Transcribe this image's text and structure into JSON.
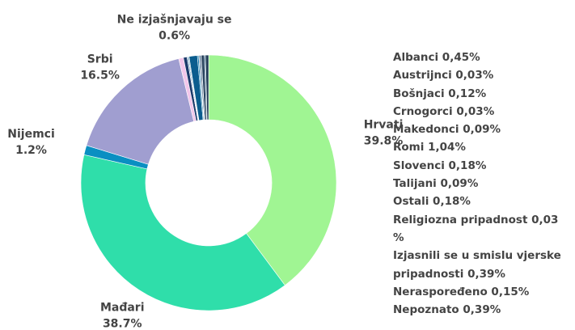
{
  "chart_data": {
    "type": "pie",
    "donut": true,
    "categories": [
      "Hrvati",
      "Mađari",
      "Nijemci",
      "Srbi",
      "Ne izjašnjavaju se"
    ],
    "values": [
      39.8,
      38.7,
      1.2,
      16.5,
      0.6
    ],
    "value_labels": [
      "39.8%",
      "38.7%",
      "1.2%",
      "16.5%",
      "0.6%"
    ],
    "colors": [
      "#a0f593",
      "#2fdeaa",
      "#0a8fc2",
      "#a09ed0",
      "#f2c6ea"
    ],
    "other": {
      "categories": [
        "Albanci",
        "Austrijnci",
        "Bošnjaci",
        "Crnogorci",
        "Makedonci",
        "Romi",
        "Slovenci",
        "Talijani",
        "Ostali",
        "Religiozna pripadnost",
        "Izjasnili se u smislu vjerske pripadnosti",
        "Neraspoređeno",
        "Nepoznato"
      ],
      "values": [
        0.45,
        0.03,
        0.12,
        0.03,
        0.09,
        1.04,
        0.18,
        0.09,
        0.18,
        0.03,
        0.39,
        0.15,
        0.39
      ],
      "value_labels": [
        "0,45%",
        "0,03%",
        "0,12%",
        "0,03%",
        "0,09%",
        "1,04%",
        "0,18%",
        "0,09%",
        "0,18%",
        "0,03 %",
        "0,39%",
        "0,15%",
        "0,39%"
      ],
      "colors": [
        "#1b3a6b",
        "#234e86",
        "#0e6a9c",
        "#2a5f8f",
        "#14527a",
        "#0b5d8e",
        "#1a7fb0",
        "#2c4f7c",
        "#375a7f",
        "#1f4d73",
        "#29445f",
        "#3b6b8c",
        "#203a56"
      ]
    }
  }
}
